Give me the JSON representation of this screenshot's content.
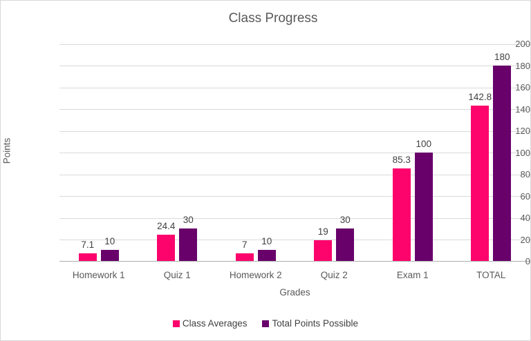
{
  "chart_data": {
    "type": "bar",
    "title": "Class Progress",
    "xlabel": "Grades",
    "ylabel": "Points",
    "categories": [
      "Homework 1",
      "Quiz 1",
      "Homework 2",
      "Quiz 2",
      "Exam 1",
      "TOTAL"
    ],
    "series": [
      {
        "name": "Class Averages",
        "color": "#fc046c",
        "values": [
          7.1,
          24.4,
          7,
          19,
          85.3,
          142.8
        ]
      },
      {
        "name": "Total Points Possible",
        "color": "#68016a",
        "values": [
          10,
          30,
          10,
          30,
          100,
          180
        ]
      }
    ],
    "ylim": [
      0,
      200
    ],
    "ytick_step": 20,
    "grid": "horizontal",
    "legend_position": "bottom",
    "data_labels": true
  },
  "colors": {
    "title_text": "#595959",
    "axis_text": "#595959",
    "data_label_text": "#404040",
    "gridline": "#d9d9d9",
    "axis_line": "#acacac",
    "chart_border": "#d7d7d7",
    "background": "#ffffff"
  }
}
